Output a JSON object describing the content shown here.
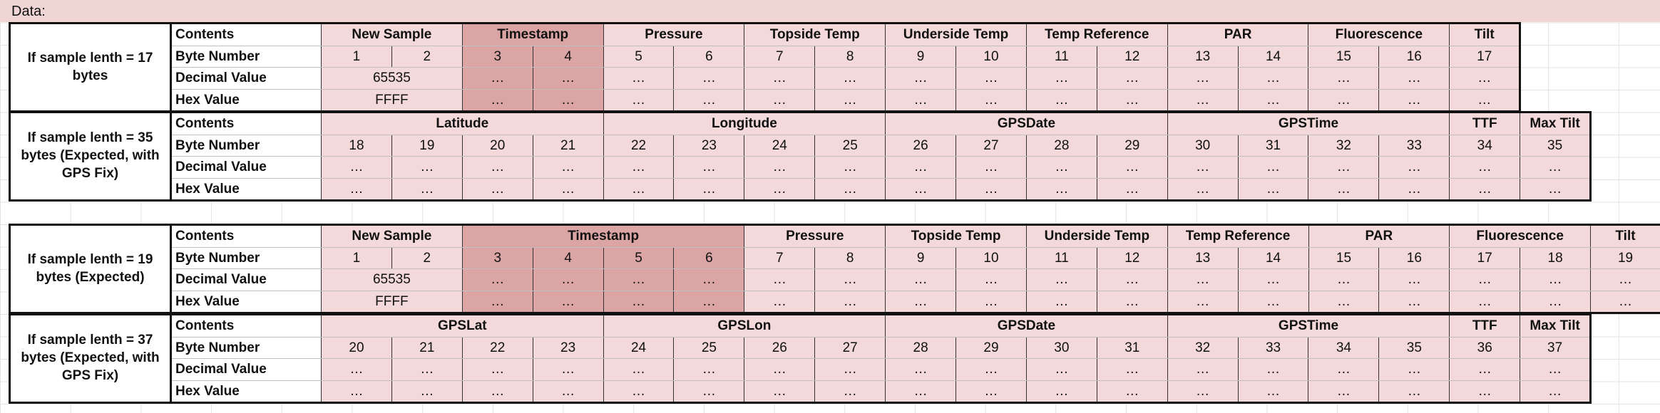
{
  "header_label": "Data:",
  "row_labels": {
    "contents": "Contents",
    "byte_number": "Byte Number",
    "decimal_value": "Decimal Value",
    "hex_value": "Hex Value"
  },
  "blocks": [
    {
      "section_label": "If sample lenth = 17 bytes",
      "fields": [
        {
          "name": "New Sample",
          "span": 2
        },
        {
          "name": "Timestamp",
          "span": 2,
          "highlight": true
        },
        {
          "name": "Pressure",
          "span": 2
        },
        {
          "name": "Topside Temp",
          "span": 2
        },
        {
          "name": "Underside Temp",
          "span": 2
        },
        {
          "name": "Temp Reference",
          "span": 2
        },
        {
          "name": "PAR",
          "span": 2
        },
        {
          "name": "Fluorescence",
          "span": 2
        },
        {
          "name": "Tilt",
          "span": 1
        }
      ],
      "bytes": [
        "1",
        "2",
        "3",
        "4",
        "5",
        "6",
        "7",
        "8",
        "9",
        "10",
        "11",
        "12",
        "13",
        "14",
        "15",
        "16",
        "17"
      ],
      "decimal": [
        {
          "v": "65535",
          "span": 2
        },
        "…",
        "…",
        "…",
        "…",
        "…",
        "…",
        "…",
        "…",
        "…",
        "…",
        "…",
        "…",
        "…",
        "…",
        "…"
      ],
      "hex": [
        {
          "v": "FFFF",
          "span": 2
        },
        "…",
        "…",
        "…",
        "…",
        "…",
        "…",
        "…",
        "…",
        "…",
        "…",
        "…",
        "…",
        "…",
        "…",
        "…"
      ]
    },
    {
      "section_label": "If sample lenth = 35 bytes (Expected, with GPS Fix)",
      "fields": [
        {
          "name": "Latitude",
          "span": 4
        },
        {
          "name": "Longitude",
          "span": 4
        },
        {
          "name": "GPSDate",
          "span": 4
        },
        {
          "name": "GPSTime",
          "span": 4
        },
        {
          "name": "TTF",
          "span": 1
        },
        {
          "name": "Max Tilt",
          "span": 1
        }
      ],
      "bytes": [
        "18",
        "19",
        "20",
        "21",
        "22",
        "23",
        "24",
        "25",
        "26",
        "27",
        "28",
        "29",
        "30",
        "31",
        "32",
        "33",
        "34",
        "35"
      ],
      "decimal": [
        "…",
        "…",
        "…",
        "…",
        "…",
        "…",
        "…",
        "…",
        "…",
        "…",
        "…",
        "…",
        "…",
        "…",
        "…",
        "…",
        "…",
        "…"
      ],
      "hex": [
        "…",
        "…",
        "…",
        "…",
        "…",
        "…",
        "…",
        "…",
        "…",
        "…",
        "…",
        "…",
        "…",
        "…",
        "…",
        "…",
        "…",
        "…"
      ]
    },
    {
      "section_label": "If sample lenth = 19 bytes (Expected)",
      "fields": [
        {
          "name": "New Sample",
          "span": 2
        },
        {
          "name": "Timestamp",
          "span": 4,
          "highlight": true
        },
        {
          "name": "Pressure",
          "span": 2
        },
        {
          "name": "Topside Temp",
          "span": 2
        },
        {
          "name": "Underside Temp",
          "span": 2
        },
        {
          "name": "Temp Reference",
          "span": 2
        },
        {
          "name": "PAR",
          "span": 2
        },
        {
          "name": "Fluorescence",
          "span": 2
        },
        {
          "name": "Tilt",
          "span": 1
        }
      ],
      "bytes": [
        "1",
        "2",
        "3",
        "4",
        "5",
        "6",
        "7",
        "8",
        "9",
        "10",
        "11",
        "12",
        "13",
        "14",
        "15",
        "16",
        "17",
        "18",
        "19"
      ],
      "decimal": [
        {
          "v": "65535",
          "span": 2
        },
        "…",
        "…",
        "…",
        "…",
        "…",
        "…",
        "…",
        "…",
        "…",
        "…",
        "…",
        "…",
        "…",
        "…",
        "…",
        "…",
        "…"
      ],
      "hex": [
        {
          "v": "FFFF",
          "span": 2
        },
        "…",
        "…",
        "…",
        "…",
        "…",
        "…",
        "…",
        "…",
        "…",
        "…",
        "…",
        "…",
        "…",
        "…",
        "…",
        "…",
        "…"
      ]
    },
    {
      "section_label": "If sample lenth = 37 bytes (Expected, with GPS Fix)",
      "fields": [
        {
          "name": "GPSLat",
          "span": 4
        },
        {
          "name": "GPSLon",
          "span": 4
        },
        {
          "name": "GPSDate",
          "span": 4
        },
        {
          "name": "GPSTime",
          "span": 4
        },
        {
          "name": "TTF",
          "span": 1
        },
        {
          "name": "Max Tilt",
          "span": 1
        }
      ],
      "bytes": [
        "20",
        "21",
        "22",
        "23",
        "24",
        "25",
        "26",
        "27",
        "28",
        "29",
        "30",
        "31",
        "32",
        "33",
        "34",
        "35",
        "36",
        "37"
      ],
      "decimal": [
        "…",
        "…",
        "…",
        "…",
        "…",
        "…",
        "…",
        "…",
        "…",
        "…",
        "…",
        "…",
        "…",
        "…",
        "…",
        "…",
        "…",
        "…"
      ],
      "hex": [
        "…",
        "…",
        "…",
        "…",
        "…",
        "…",
        "…",
        "…",
        "…",
        "…",
        "…",
        "…",
        "…",
        "…",
        "…",
        "…",
        "…",
        "…"
      ]
    }
  ]
}
